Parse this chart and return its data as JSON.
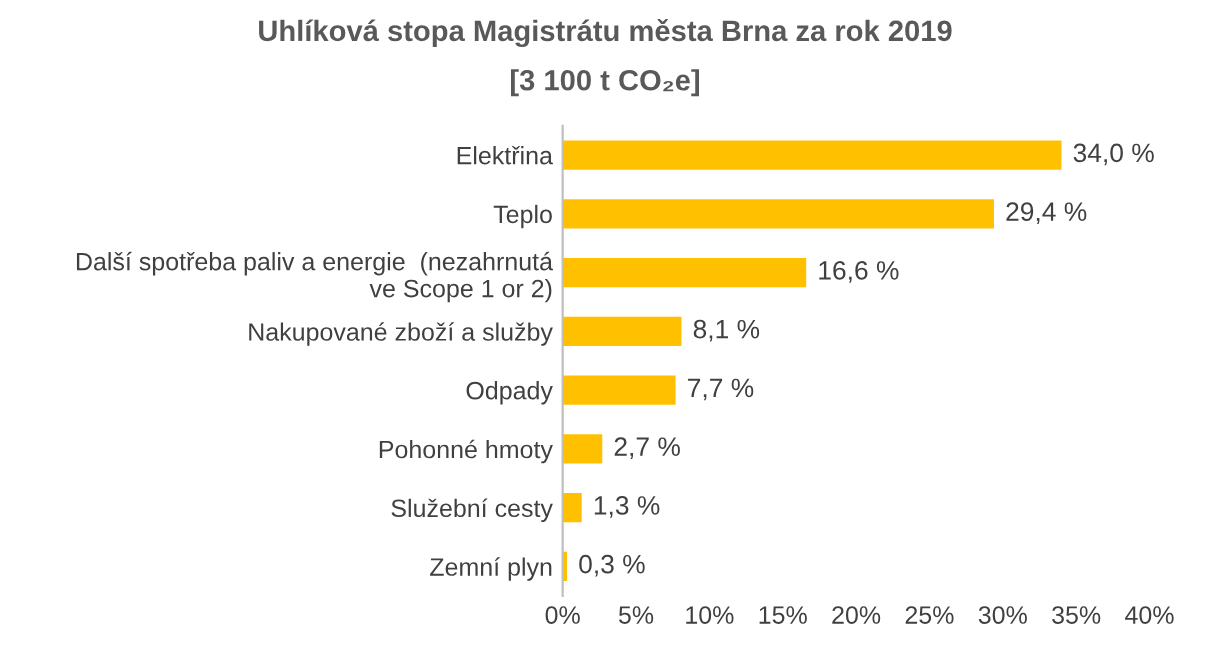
{
  "chart_data": {
    "type": "bar",
    "orientation": "horizontal",
    "title": "Uhlíková stopa Magistrátu města Brna za rok 2019",
    "subtitle": "[3 100 t CO₂e]",
    "categories": [
      "Elektřina",
      "Teplo",
      "Další spotřeba paliv a energie  (nezahrnutá\nve Scope 1 or 2)",
      "Nakupované zboží a služby",
      "Odpady",
      "Pohonné hmoty",
      "Služební cesty",
      "Zemní plyn"
    ],
    "values": [
      34.0,
      29.4,
      16.6,
      8.1,
      7.7,
      2.7,
      1.3,
      0.3
    ],
    "value_labels": [
      "34,0 %",
      "29,4 %",
      "16,6 %",
      "8,1 %",
      "7,7 %",
      "2,7 %",
      "1,3 %",
      "0,3 %"
    ],
    "color": "#ffc000",
    "xlim": [
      0,
      40
    ],
    "xticks": [
      {
        "value": 0,
        "label": "0%"
      },
      {
        "value": 5,
        "label": "5%"
      },
      {
        "value": 10,
        "label": "10%"
      },
      {
        "value": 15,
        "label": "15%"
      },
      {
        "value": 20,
        "label": "20%"
      },
      {
        "value": 25,
        "label": "25%"
      },
      {
        "value": 30,
        "label": "30%"
      },
      {
        "value": 35,
        "label": "35%"
      },
      {
        "value": 40,
        "label": "40%"
      }
    ],
    "grid": false,
    "legend": false
  }
}
